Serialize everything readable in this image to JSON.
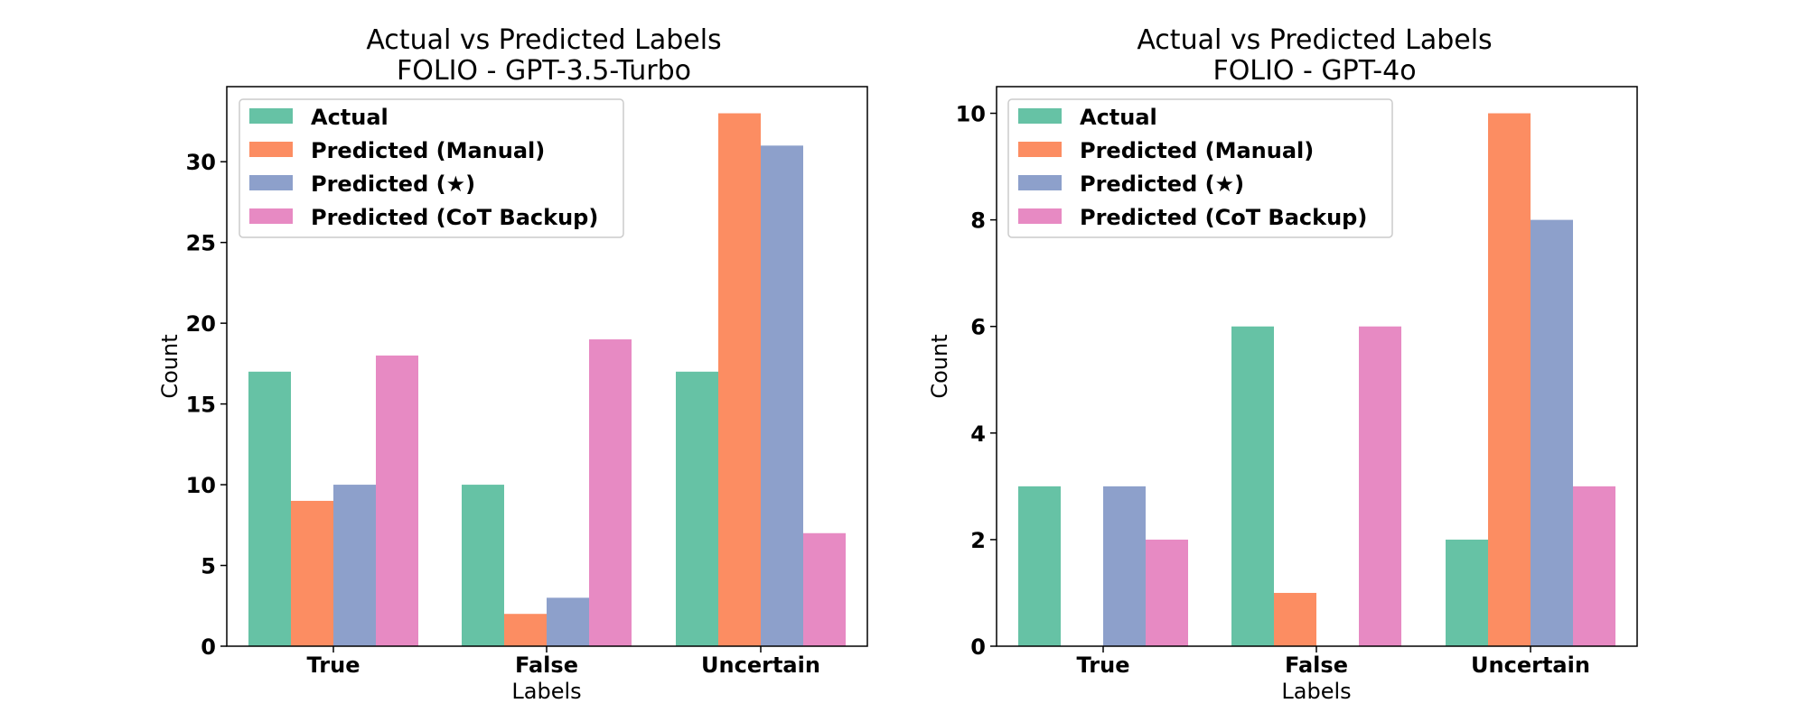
{
  "colors": {
    "actual": "#66c2a5",
    "manual": "#fc8d62",
    "star": "#8da0cb",
    "cot": "#e78ac3"
  },
  "chart_data": [
    {
      "type": "bar",
      "title": "Actual vs Predicted Labels",
      "subtitle": "FOLIO - GPT-3.5-Turbo",
      "xlabel": "Labels",
      "ylabel": "Count",
      "categories": [
        "True",
        "False",
        "Uncertain"
      ],
      "ylim": [
        0,
        34.65
      ],
      "yticks": [
        0,
        5,
        10,
        15,
        20,
        25,
        30
      ],
      "legend_position": "top-left",
      "series": [
        {
          "name": "Actual",
          "color_key": "actual",
          "values": [
            17,
            10,
            17
          ]
        },
        {
          "name": "Predicted (Manual)",
          "color_key": "manual",
          "values": [
            9,
            2,
            33
          ]
        },
        {
          "name": "Predicted (★)",
          "color_key": "star",
          "values": [
            10,
            3,
            31
          ]
        },
        {
          "name": "Predicted (CoT Backup)",
          "color_key": "cot",
          "values": [
            18,
            19,
            7
          ]
        }
      ]
    },
    {
      "type": "bar",
      "title": "Actual vs Predicted Labels",
      "subtitle": "FOLIO - GPT-4o",
      "xlabel": "Labels",
      "ylabel": "Count",
      "categories": [
        "True",
        "False",
        "Uncertain"
      ],
      "ylim": [
        0,
        10.5
      ],
      "yticks": [
        0,
        2,
        4,
        6,
        8,
        10
      ],
      "legend_position": "top-left",
      "series": [
        {
          "name": "Actual",
          "color_key": "actual",
          "values": [
            3,
            6,
            2
          ]
        },
        {
          "name": "Predicted (Manual)",
          "color_key": "manual",
          "values": [
            0,
            1,
            10
          ]
        },
        {
          "name": "Predicted (★)",
          "color_key": "star",
          "values": [
            3,
            0,
            8
          ]
        },
        {
          "name": "Predicted (CoT Backup)",
          "color_key": "cot",
          "values": [
            2,
            6,
            3
          ]
        }
      ]
    }
  ]
}
